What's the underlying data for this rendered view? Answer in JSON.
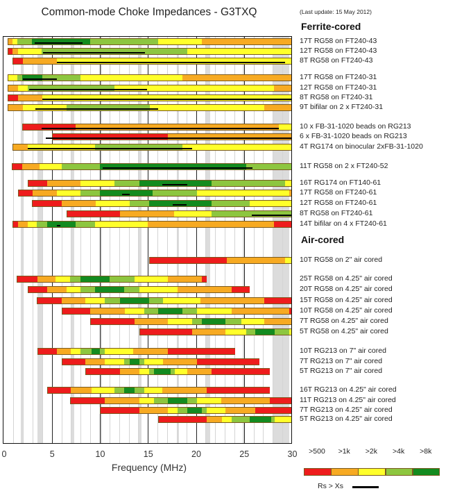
{
  "title": "Common-mode Choke Impedances - G3TXQ",
  "last_update": "(Last update: 15 May 2012)",
  "chart_data": {
    "type": "bar",
    "subtype": "horizontal-range-segments",
    "title": "Common-mode Choke Impedances - G3TXQ",
    "xlabel": "Frequency (MHz)",
    "xlim": [
      0,
      30
    ],
    "xticks": [
      "0",
      "5",
      "10",
      "15",
      "20",
      "25",
      "30"
    ],
    "grid": true,
    "ham_bands_mhz": [
      [
        1.8,
        2.0
      ],
      [
        3.5,
        4.0
      ],
      [
        7.0,
        7.3
      ],
      [
        10.1,
        10.15
      ],
      [
        14.0,
        14.35
      ],
      [
        18.07,
        18.17
      ],
      [
        21.0,
        21.45
      ],
      [
        24.89,
        24.99
      ],
      [
        28.0,
        29.7
      ]
    ],
    "legend": {
      "placement": "bottom-right",
      "levels": [
        {
          "label": ">500",
          "color": "#ee1c1c"
        },
        {
          "label": ">1k",
          "color": "#f7aa22"
        },
        {
          "label": ">2k",
          "color": "#ffff2a"
        },
        {
          "label": ">4k",
          "color": "#8dc63f"
        },
        {
          "label": ">8k",
          "color": "#138b1f"
        }
      ],
      "rs_label": "Rs > Xs"
    },
    "sections": [
      {
        "title": "Ferrite-cored",
        "rows": [
          {
            "label": "17T RG58 on FT240-43",
            "edges": [
              0.4,
              0.9,
              1.4,
              2.9,
              9.0,
              16.1,
              20.6,
              30
            ],
            "levels": [
              1,
              2,
              3,
              4,
              3,
              2,
              1
            ],
            "rs": [
              3.2,
              8.2
            ]
          },
          {
            "label": "12T RG58 on FT240-43",
            "edges": [
              0.4,
              0.9,
              1.5,
              3.9,
              19.1,
              30
            ],
            "levels": [
              0,
              1,
              2,
              3,
              2
            ],
            "rs": [
              4.1,
              14.7
            ]
          },
          {
            "label": "8T RG58 on FT240-43",
            "edges": [
              0.9,
              2.0,
              5.5,
              30
            ],
            "levels": [
              0,
              1,
              2
            ],
            "rs": [
              5.5,
              29.3
            ]
          },
          {
            "label": "17T RG58 on FT240-31",
            "edges": [
              0.4,
              1.4,
              1.9,
              4.0,
              8.0,
              18.6,
              30
            ],
            "levels": [
              2,
              3,
              4,
              3,
              2,
              1
            ],
            "rs": [
              2.0,
              5.5
            ]
          },
          {
            "label": "12T RG58 on FT240-31",
            "edges": [
              0.4,
              1.5,
              2.5,
              11.5,
              28.1,
              30
            ],
            "levels": [
              1,
              2,
              3,
              2,
              1
            ],
            "rs": [
              2.6,
              14.9
            ]
          },
          {
            "label": "8T RG58 on FT240-31",
            "edges": [
              0.4,
              1.5,
              4.0,
              30
            ],
            "levels": [
              0,
              1,
              2
            ],
            "rs": [
              4.0,
              30
            ]
          },
          {
            "label": "9T bifilar on 2 x FT240-31",
            "edges": [
              0.4,
              2.0,
              6.5,
              15.2,
              27.1,
              30
            ],
            "levels": [
              1,
              2,
              3,
              2,
              1
            ],
            "rs": [
              3.3,
              16.1
            ]
          },
          {
            "label": "10 x FB-31-1020 beads on RG213",
            "edges": [
              1.9,
              7.5,
              28.6,
              30
            ],
            "levels": [
              0,
              1,
              2
            ],
            "rs": [
              3.9,
              28.6
            ]
          },
          {
            "label": "6 x FB-31-1020 beads on RG213",
            "edges": [
              5.0,
              17.1,
              30
            ],
            "levels": [
              0,
              1
            ],
            "rs": [
              4.4,
              30
            ]
          },
          {
            "label": "4T RG174 on binocular 2xFB-31-1020",
            "edges": [
              0.9,
              2.5,
              9.5,
              18.6,
              30
            ],
            "levels": [
              1,
              2,
              3,
              2
            ],
            "rs": [
              2.5,
              19.6
            ]
          },
          {
            "label": "11T RG58 on 2 x FT240-52",
            "edges": [
              0.8,
              1.9,
              3.7,
              6.0,
              10.0,
              25.2,
              30
            ],
            "levels": [
              0,
              1,
              2,
              3,
              4,
              3
            ],
            "rs": [
              10.3,
              25.9
            ]
          },
          {
            "label": "16T RG174 on FT140-61",
            "edges": [
              2.5,
              4.5,
              8.0,
              11.5,
              14.1,
              21.6,
              29.3,
              30
            ],
            "levels": [
              0,
              1,
              2,
              3,
              4,
              3,
              2
            ],
            "rs": [
              16.5,
              19.1
            ]
          },
          {
            "label": "17T RG58 on FT240-61",
            "edges": [
              1.5,
              3.0,
              5.5,
              8.0,
              10.0,
              15.5,
              20.1,
              29.7,
              30
            ],
            "levels": [
              0,
              1,
              2,
              3,
              4,
              3,
              2,
              1
            ],
            "rs": [
              12.3,
              13.1
            ]
          },
          {
            "label": "12T RG58 on FT240-61",
            "edges": [
              2.9,
              6.0,
              9.6,
              13.1,
              15.1,
              21.6,
              25.6,
              30
            ],
            "levels": [
              0,
              1,
              2,
              3,
              4,
              3,
              2
            ],
            "rs": [
              17.6,
              19.0
            ]
          },
          {
            "label": "8T RG58 on FT240-61",
            "edges": [
              6.5,
              12.1,
              17.7,
              21.6,
              30
            ],
            "levels": [
              0,
              1,
              2,
              3
            ],
            "rs": [
              25.8,
              30
            ]
          },
          {
            "label": "14T bifilar on 4 x FT240-61",
            "edges": [
              0.9,
              1.5,
              2.5,
              3.4,
              4.5,
              7.5,
              9.5,
              15.0,
              28.1,
              30
            ],
            "levels": [
              0,
              1,
              2,
              3,
              4,
              3,
              2,
              1,
              0
            ],
            "rs": [
              5.5,
              5.9
            ]
          }
        ]
      },
      {
        "title": "Air-cored",
        "rows": [
          {
            "label": "10T RG58 on 2\" air cored",
            "edges": [
              15.1,
              23.2,
              29.3,
              30
            ],
            "levels": [
              0,
              1,
              2
            ]
          },
          {
            "label": "25T RG58 on 4.25\" air cored",
            "edges": [
              1.3,
              3.5,
              5.4,
              6.9,
              8.0,
              11.0,
              13.6,
              17.1,
              20.6,
              21.1
            ],
            "levels": [
              0,
              1,
              2,
              3,
              4,
              3,
              2,
              1,
              0
            ]
          },
          {
            "label": "20T RG58 on 4.25\" air cored",
            "edges": [
              2.5,
              4.5,
              6.5,
              8.0,
              9.5,
              12.5,
              14.1,
              18.1,
              23.7,
              25.6
            ],
            "levels": [
              0,
              1,
              2,
              3,
              4,
              3,
              2,
              1,
              0
            ]
          },
          {
            "label": "15T RG58 on 4.25\" air cored",
            "edges": [
              3.4,
              6.0,
              8.5,
              10.5,
              12.1,
              15.1,
              16.6,
              20.5,
              27.1,
              30
            ],
            "levels": [
              0,
              1,
              2,
              3,
              4,
              3,
              2,
              1,
              0
            ]
          },
          {
            "label": "10T RG58 on 4.25\" air cored",
            "edges": [
              6.0,
              9.0,
              12.6,
              14.6,
              16.1,
              18.6,
              20.1,
              23.7,
              29.7,
              30
            ],
            "levels": [
              0,
              1,
              2,
              3,
              4,
              3,
              2,
              1,
              0
            ]
          },
          {
            "label": "7T RG58 on 4.25\" air cored",
            "edges": [
              9.0,
              13.6,
              17.1,
              19.6,
              20.6,
              23.1,
              24.7,
              27.1,
              30
            ],
            "levels": [
              0,
              1,
              2,
              3,
              4,
              3,
              2,
              1
            ]
          },
          {
            "label": "5T RG58 on 4.25\" air cored",
            "edges": [
              14.1,
              19.6,
              23.1,
              25.2,
              26.2,
              28.2,
              29.7,
              30
            ],
            "levels": [
              0,
              1,
              2,
              3,
              4,
              3,
              2
            ]
          },
          {
            "label": "10T RG213 on 7\" air cored",
            "edges": [
              3.5,
              5.5,
              7.0,
              8.0,
              9.1,
              10.0,
              10.5,
              13.5,
              17.1,
              24.1
            ],
            "levels": [
              0,
              1,
              2,
              3,
              4,
              3,
              2,
              1,
              0
            ]
          },
          {
            "label": "7T RG213 on 7\" air cored",
            "edges": [
              6.0,
              8.5,
              10.5,
              12.5,
              13.1,
              14.1,
              14.6,
              16.6,
              20.1,
              26.6
            ],
            "levels": [
              0,
              1,
              2,
              3,
              4,
              3,
              2,
              1,
              0
            ]
          },
          {
            "label": "5T RG213 on 7\" air cored",
            "edges": [
              8.5,
              12.1,
              14.1,
              15.1,
              15.6,
              17.4,
              17.8,
              19.1,
              21.6,
              27.7
            ],
            "levels": [
              0,
              1,
              2,
              3,
              4,
              3,
              2,
              1,
              0
            ]
          },
          {
            "label": "16T RG213 on 4.25\" air cored",
            "edges": [
              4.5,
              7.0,
              9.1,
              11.5,
              12.5,
              13.6,
              14.6,
              16.5,
              21.1,
              27.7
            ],
            "levels": [
              0,
              1,
              2,
              3,
              4,
              3,
              2,
              1,
              0
            ]
          },
          {
            "label": "11T RG213 on 4.25\" air cored",
            "edges": [
              6.9,
              10.5,
              14.1,
              15.6,
              17.1,
              19.1,
              20.1,
              22.6,
              27.7,
              30
            ],
            "levels": [
              0,
              1,
              2,
              3,
              4,
              3,
              2,
              1,
              0
            ]
          },
          {
            "label": "7T RG213 on 4.25\" air cored",
            "edges": [
              10.0,
              14.1,
              17.1,
              18.1,
              19.1,
              20.6,
              21.1,
              23.1,
              26.2,
              30
            ],
            "levels": [
              0,
              1,
              2,
              3,
              4,
              3,
              2,
              1,
              0
            ]
          },
          {
            "label": "5T RG213 on 4.25\" air cored",
            "edges": [
              16.1,
              21.1,
              22.7,
              23.7,
              25.6,
              27.8,
              28.2,
              30
            ],
            "levels": [
              0,
              1,
              2,
              3,
              4,
              3,
              2
            ]
          }
        ]
      }
    ]
  }
}
